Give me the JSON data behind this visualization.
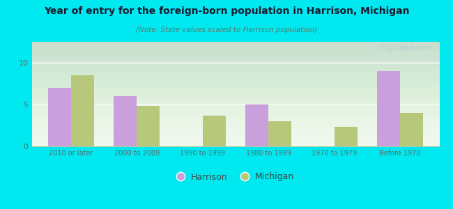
{
  "title": "Year of entry for the foreign-born population in Harrison, Michigan",
  "subtitle": "(Note: State values scaled to Harrison population)",
  "categories": [
    "2010 or later",
    "2000 to 2009",
    "1990 to 1999",
    "1980 to 1989",
    "1970 to 1979",
    "Before 1970"
  ],
  "harrison_values": [
    7.0,
    6.0,
    0,
    5.0,
    0,
    9.0
  ],
  "michigan_values": [
    8.5,
    4.8,
    3.7,
    3.0,
    2.3,
    4.0
  ],
  "harrison_color": "#c9a0dc",
  "michigan_color": "#b8c87a",
  "background_outer": "#00e8f0",
  "background_inner_top": "#f0f8ee",
  "background_inner_bottom": "#e0f0da",
  "ylim": [
    0,
    12.5
  ],
  "yticks": [
    0,
    5,
    10
  ],
  "bar_width": 0.35,
  "legend_harrison": "Harrison",
  "legend_michigan": "Michigan",
  "watermark": "City-Data.com",
  "title_color": "#1a1a2e",
  "subtitle_color": "#5a7a6a",
  "tick_color": "#5a6a6a",
  "grid_color": "#ffffff"
}
